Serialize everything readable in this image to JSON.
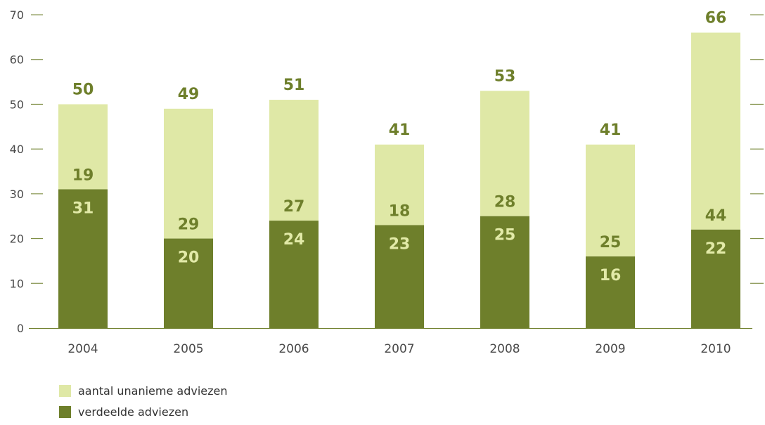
{
  "chart_data": {
    "type": "bar",
    "stacked": true,
    "categories": [
      "2004",
      "2005",
      "2006",
      "2007",
      "2008",
      "2009",
      "2010"
    ],
    "series": [
      {
        "name": "verdeelde adviezen",
        "values": [
          31,
          20,
          24,
          23,
          25,
          16,
          22
        ],
        "color": "#6e7f2b"
      },
      {
        "name": "aantal unanieme adviezen",
        "values": [
          19,
          29,
          27,
          18,
          28,
          25,
          44
        ],
        "color": "#dfe8a6"
      }
    ],
    "totals": [
      50,
      49,
      51,
      41,
      53,
      41,
      66
    ],
    "ylim": [
      0,
      70
    ],
    "yticks": [
      0,
      10,
      20,
      30,
      40,
      50,
      60,
      70
    ],
    "grid": false,
    "legend_position": "bottom-left",
    "title": "",
    "xlabel": "",
    "ylabel": ""
  }
}
